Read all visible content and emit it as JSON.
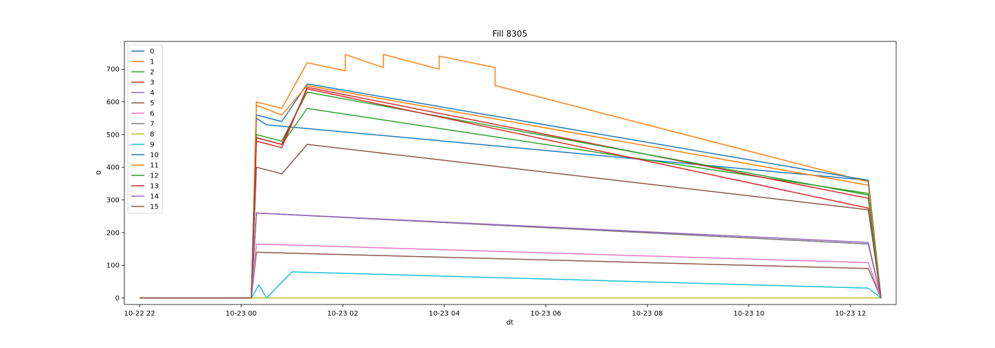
{
  "chart_data": {
    "type": "line",
    "title": "Fill 8305",
    "xlabel": "dt",
    "ylabel": "0",
    "x_ticks": [
      "10-22 22",
      "10-23 00",
      "10-23 02",
      "10-23 04",
      "10-23 06",
      "10-23 08",
      "10-23 10",
      "10-23 12"
    ],
    "x_unit": "hours since 2022-10-22 22:00",
    "xlim": [
      -0.3,
      14.9
    ],
    "ylim": [
      -20,
      785
    ],
    "y_ticks": [
      0,
      100,
      200,
      300,
      400,
      500,
      600,
      700
    ],
    "grid": false,
    "legend_position": "upper left",
    "colors": [
      "#1f77b4",
      "#ff7f0e",
      "#2ca02c",
      "#d62728",
      "#9467bd",
      "#8c564b",
      "#e377c2",
      "#7f7f7f",
      "#bcbd22",
      "#17becf",
      "#1f77b4",
      "#ff7f0e",
      "#2ca02c",
      "#d62728",
      "#9467bd",
      "#8c564b"
    ],
    "series": [
      {
        "name": "0",
        "x": [
          0.0,
          2.2,
          2.3,
          2.5,
          14.35,
          14.6
        ],
        "y": [
          0,
          0,
          550,
          530,
          360,
          0
        ]
      },
      {
        "name": "1",
        "x": [
          0.0,
          2.2,
          2.3,
          2.8,
          3.3,
          4.05,
          4.05,
          4.8,
          4.8,
          5.9,
          5.9,
          7.0,
          7.0,
          14.35,
          14.6
        ],
        "y": [
          0,
          0,
          600,
          580,
          720,
          695,
          745,
          705,
          745,
          700,
          740,
          705,
          650,
          355,
          0
        ]
      },
      {
        "name": "2",
        "x": [
          0.0,
          2.2,
          2.3,
          2.8,
          3.3,
          14.35,
          14.6
        ],
        "y": [
          0,
          0,
          490,
          470,
          580,
          320,
          0
        ]
      },
      {
        "name": "3",
        "x": [
          0.0,
          2.2,
          2.3,
          2.8,
          3.3,
          14.35,
          14.6
        ],
        "y": [
          0,
          0,
          480,
          460,
          645,
          305,
          0
        ]
      },
      {
        "name": "4",
        "x": [
          0.0,
          2.2,
          2.3,
          14.35,
          14.6
        ],
        "y": [
          0,
          0,
          260,
          165,
          0
        ]
      },
      {
        "name": "5",
        "x": [
          0.0,
          2.2,
          2.3,
          14.35,
          14.6
        ],
        "y": [
          0,
          0,
          140,
          90,
          0
        ]
      },
      {
        "name": "6",
        "x": [
          0.0,
          2.2,
          2.3,
          14.35,
          14.6
        ],
        "y": [
          0,
          0,
          165,
          108,
          0
        ]
      },
      {
        "name": "7",
        "x": [
          0.0,
          2.2,
          2.3,
          14.35,
          14.6
        ],
        "y": [
          0,
          0,
          260,
          165,
          0
        ]
      },
      {
        "name": "8",
        "x": [
          0.0,
          14.6
        ],
        "y": [
          0,
          0
        ]
      },
      {
        "name": "9",
        "x": [
          0.0,
          2.2,
          2.35,
          2.5,
          3.0,
          14.35,
          14.6
        ],
        "y": [
          0,
          0,
          40,
          0,
          80,
          30,
          0
        ]
      },
      {
        "name": "10",
        "x": [
          0.0,
          2.2,
          2.3,
          2.8,
          3.3,
          14.35,
          14.6
        ],
        "y": [
          0,
          0,
          560,
          540,
          655,
          360,
          0
        ]
      },
      {
        "name": "11",
        "x": [
          0.0,
          2.2,
          2.3,
          2.8,
          3.3,
          14.35,
          14.6
        ],
        "y": [
          0,
          0,
          590,
          560,
          650,
          345,
          0
        ]
      },
      {
        "name": "12",
        "x": [
          0.0,
          2.2,
          2.3,
          2.8,
          3.3,
          14.35,
          14.6
        ],
        "y": [
          0,
          0,
          500,
          480,
          630,
          315,
          0
        ]
      },
      {
        "name": "13",
        "x": [
          0.0,
          2.2,
          2.3,
          2.8,
          3.3,
          14.35,
          14.6
        ],
        "y": [
          0,
          0,
          490,
          470,
          640,
          275,
          0
        ]
      },
      {
        "name": "14",
        "x": [
          0.0,
          2.2,
          2.3,
          14.35,
          14.6
        ],
        "y": [
          0,
          0,
          260,
          170,
          0
        ]
      },
      {
        "name": "15",
        "x": [
          0.0,
          2.2,
          2.3,
          2.8,
          3.3,
          14.35,
          14.6
        ],
        "y": [
          0,
          0,
          400,
          380,
          470,
          270,
          0
        ]
      }
    ]
  }
}
